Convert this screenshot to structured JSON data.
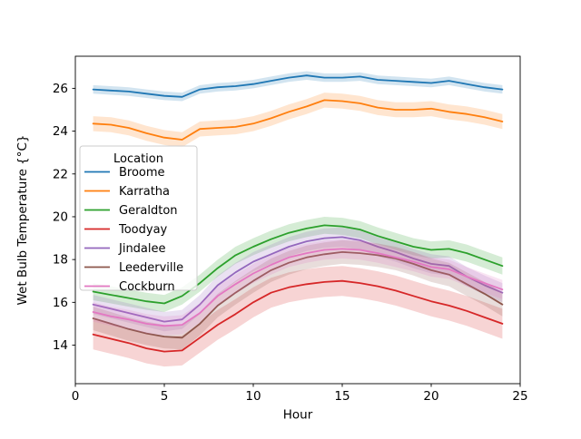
{
  "chart_data": {
    "type": "line",
    "title": "",
    "xlabel": "Hour",
    "ylabel": "Wet Bulb Temperature {°C}",
    "xlim": [
      0,
      25
    ],
    "ylim": [
      12.2,
      27.5
    ],
    "xticks": [
      0,
      5,
      10,
      15,
      20,
      25
    ],
    "xtick_labels": [
      "0",
      "5",
      "10",
      "15",
      "20",
      "25"
    ],
    "yticks": [
      14,
      16,
      18,
      20,
      22,
      24,
      26
    ],
    "ytick_labels": [
      "14",
      "16",
      "18",
      "20",
      "22",
      "24",
      "26"
    ],
    "grid": false,
    "legend_title": "Location",
    "legend_position": "upper-left-inside",
    "band_alpha": 0.2,
    "x": [
      1,
      2,
      3,
      4,
      5,
      6,
      7,
      8,
      9,
      10,
      11,
      12,
      13,
      14,
      15,
      16,
      17,
      18,
      19,
      20,
      21,
      22,
      23,
      24
    ],
    "series": [
      {
        "name": "Broome",
        "color": "#1f77b4",
        "ci": 0.2,
        "values": [
          25.95,
          25.9,
          25.85,
          25.75,
          25.65,
          25.6,
          25.95,
          26.05,
          26.1,
          26.2,
          26.35,
          26.5,
          26.6,
          26.5,
          26.5,
          26.55,
          26.4,
          26.35,
          26.3,
          26.25,
          26.35,
          26.2,
          26.05,
          25.95
        ]
      },
      {
        "name": "Karratha",
        "color": "#ff7f0e",
        "ci": 0.35,
        "values": [
          24.35,
          24.3,
          24.15,
          23.9,
          23.7,
          23.6,
          24.1,
          24.15,
          24.2,
          24.35,
          24.6,
          24.9,
          25.15,
          25.45,
          25.4,
          25.3,
          25.1,
          25.0,
          25.0,
          25.05,
          24.9,
          24.8,
          24.65,
          24.45
        ]
      },
      {
        "name": "Geraldton",
        "color": "#2ca02c",
        "ci": 0.4,
        "values": [
          16.5,
          16.35,
          16.2,
          16.05,
          15.95,
          16.3,
          16.9,
          17.6,
          18.2,
          18.6,
          18.95,
          19.25,
          19.45,
          19.6,
          19.55,
          19.4,
          19.1,
          18.85,
          18.6,
          18.45,
          18.5,
          18.3,
          18.0,
          17.7
        ]
      },
      {
        "name": "Toodyay",
        "color": "#d62728",
        "ci": 0.7,
        "values": [
          14.5,
          14.3,
          14.1,
          13.85,
          13.7,
          13.75,
          14.35,
          14.95,
          15.45,
          16.0,
          16.45,
          16.7,
          16.85,
          16.95,
          17.0,
          16.9,
          16.75,
          16.55,
          16.3,
          16.05,
          15.85,
          15.6,
          15.3,
          15.0
        ]
      },
      {
        "name": "Jindalee",
        "color": "#9467bd",
        "ci": 0.45,
        "values": [
          15.9,
          15.7,
          15.5,
          15.3,
          15.1,
          15.2,
          15.9,
          16.8,
          17.4,
          17.9,
          18.25,
          18.6,
          18.85,
          19.0,
          19.05,
          18.9,
          18.6,
          18.35,
          18.05,
          17.8,
          17.7,
          17.2,
          16.8,
          16.45
        ]
      },
      {
        "name": "Leederville",
        "color": "#8c564b",
        "ci": 0.55,
        "values": [
          15.25,
          15.0,
          14.75,
          14.55,
          14.4,
          14.35,
          15.0,
          15.85,
          16.45,
          17.0,
          17.5,
          17.85,
          18.1,
          18.25,
          18.35,
          18.3,
          18.2,
          18.05,
          17.8,
          17.5,
          17.3,
          16.85,
          16.4,
          15.9
        ]
      },
      {
        "name": "Cockburn",
        "color": "#e377c2",
        "ci": 0.45,
        "values": [
          15.55,
          15.35,
          15.2,
          15.0,
          14.9,
          14.95,
          15.5,
          16.3,
          16.85,
          17.35,
          17.75,
          18.1,
          18.3,
          18.45,
          18.5,
          18.45,
          18.3,
          18.1,
          17.9,
          17.65,
          17.55,
          17.2,
          16.9,
          16.6
        ]
      }
    ]
  }
}
